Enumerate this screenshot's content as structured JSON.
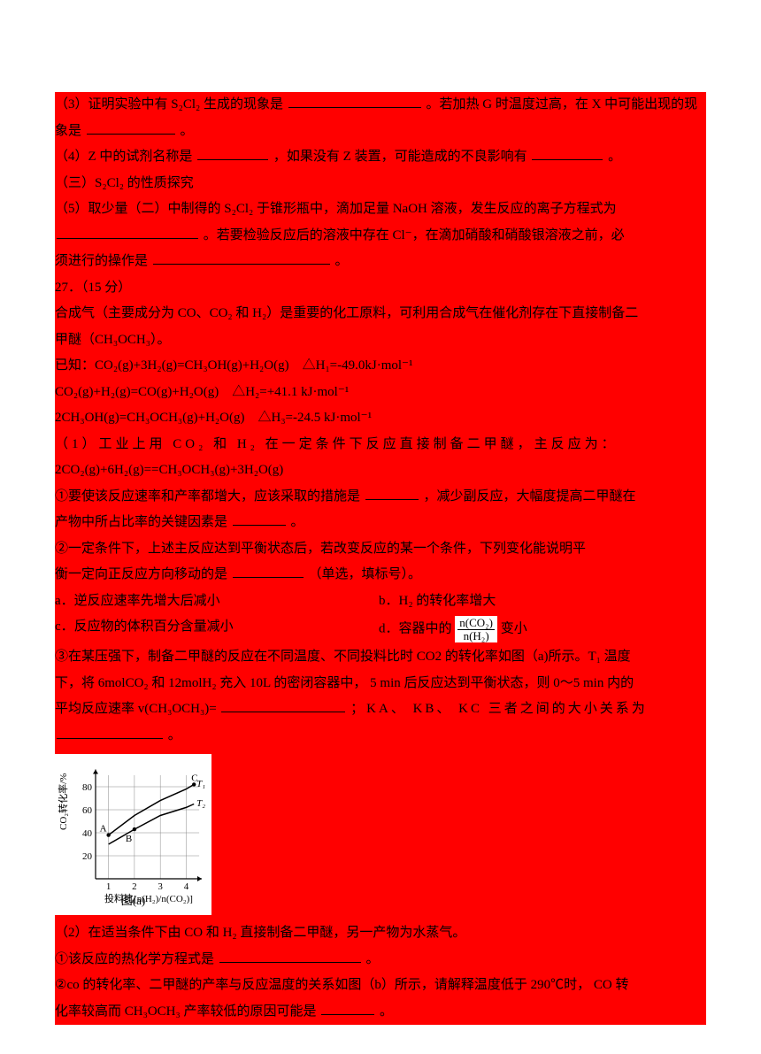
{
  "bg_color": "#ff0000",
  "text_color": "#000000",
  "page_bg": "#ffffff",
  "q3": {
    "text_a": "（3）证明实验中有 S₂Cl₂ 生成的现象是",
    "blank1_width": 150,
    "text_b": "。若加热 G 时温度过高，在 X 中可能出现的现",
    "text_c": "象是",
    "blank2_width": 100,
    "text_d": "。"
  },
  "q4": {
    "text_a": "（4）Z 中的试剂名称是",
    "blank1_width": 80,
    "text_b": "，如果没有 Z 装置，可能造成的不良影响有",
    "blank2_width": 80,
    "text_c": "。"
  },
  "section3": "（三）S₂Cl₂ 的性质探究",
  "q5": {
    "text_a": "（5）取少量（二）中制得的 S₂Cl₂ 于锥形瓶中，滴加足量 NaOH 溶液，发生反应的离子方程式为",
    "blank1_width": 160,
    "text_b": "。若要检验反应后的溶液中存在 Cl⁻，在滴加硝酸和硝酸银溶液之前，必",
    "text_c": "须进行的操作是",
    "blank2_width": 200,
    "text_d": "。"
  },
  "q27": {
    "header": "27．（15 分）",
    "intro_a": "合成气（主要成分为 CO、CO₂ 和 H₂）是重要的化工原料，可利用合成气在催化剂存在下直接制备二",
    "intro_b": "甲醚（CH₃OCH₃）。",
    "known_label": "已知：",
    "eq1": "CO₂(g)+3H₂(g)=CH₃OH(g)+H₂O(g)　△H₁=-49.0kJ·mol⁻¹",
    "eq2": " CO₂(g)+H₂(g)=CO(g)+H₂O(g)　△H₂=+41.1 kJ·mol⁻¹",
    "eq3": "2CH₃OH(g)=CH₃OCH₃(g)+H₂O(g)　△H₃=-24.5 kJ·mol⁻¹",
    "p1_a": "（1）工业上用 CO₂ 和 H₂ 在一定条件下反应直接制备二甲醚，主反应为：",
    "p1_eq": "2CO₂(g)+6H₂(g)==CH₃OCH₃(g)+3H₂O(g)",
    "p1_q1_a": "①要使该反应速率和产率都增大，应该采取的措施是",
    "p1_q1_blank": 60,
    "p1_q1_b": "，减少副反应，大幅度提高二甲醚在",
    "p1_q1_c": "产物中所占比率的关键因素是",
    "p1_q1_blank2": 60,
    "p1_q1_d": "。",
    "p1_q2_a": "②一定条件下，上述主反应达到平衡状态后，若改变反应的某一个条件，下列变化能说明平",
    "p1_q2_b": "衡一定向正反应方向移动的是",
    "p1_q2_blank": 80,
    "p1_q2_c": "（单选，填标号）。",
    "opt_a": "a．逆反应速率先增大后减小",
    "opt_b": "b．H₂ 的转化率增大",
    "opt_c": "c．反应物的体积百分含量减小",
    "opt_d_pre": "d．容器中的",
    "opt_d_post": "变小",
    "frac_num": "n(CO₂)",
    "frac_den": "n(H₂)",
    "p1_q3_a": "③在某压强下，制备二甲醚的反应在不同温度、不同投料比时 CO2 的转化率如图（a)所示。T₁ 温度",
    "p1_q3_b": "下，将 6molCO₂ 和 12molH₂ 充入 10L 的密闭容器中，  5 min 后反应达到平衡状态，则 0～5 min 内的",
    "p1_q3_c": "平均反应速率 v(CH₃OCH₃)=",
    "p1_q3_blank": 140,
    "p1_q3_d": "；KA、 KB、 KC 三者之间的大小关系为",
    "p1_q3_blank2": 120,
    "p1_q3_e": "。",
    "p2_a": "（2）在适当条件下由 CO 和 H₂ 直接制备二甲醚，另一产物为水蒸气。",
    "p2_q1_a": "①该反应的热化学方程式是",
    "p2_q1_blank": 160,
    "p2_q1_b": "。",
    "p2_q2_a": "②co 的转化率、二甲醚的产率与反应温度的关系如图（b）所示，请解释温度低于 290℃时， CO 转",
    "p2_q2_b": "化率较高而 CH₃OCH₃ 产率较低的原因可能是",
    "p2_q2_blank": 60,
    "p2_q2_c": "。"
  },
  "chart": {
    "y_label": "CO₂转化率/%",
    "x_label": "投料比[n(H₂)/n(CO₂)]",
    "caption": "图(a)",
    "grid_color": "#888888",
    "axis_color": "#000000",
    "bg": "#ffffff",
    "x_ticks": [
      "1",
      "2",
      "3",
      "4"
    ],
    "y_ticks": [
      "20",
      "40",
      "60",
      "80"
    ],
    "series": [
      {
        "label": "T₁",
        "points": [
          [
            1,
            38
          ],
          [
            2,
            55
          ],
          [
            3,
            68
          ],
          [
            4,
            78
          ],
          [
            4.3,
            82
          ]
        ],
        "label_pos": [
          4.4,
          80
        ]
      },
      {
        "label": "T₂",
        "points": [
          [
            1,
            30
          ],
          [
            2,
            43
          ],
          [
            3,
            55
          ],
          [
            4,
            62
          ],
          [
            4.3,
            65
          ]
        ],
        "label_pos": [
          4.4,
          63
        ]
      }
    ],
    "markers": [
      {
        "label": "A",
        "x": 1,
        "y": 38
      },
      {
        "label": "B",
        "x": 2,
        "y": 43
      },
      {
        "label": "C",
        "x": 4.3,
        "y": 82
      }
    ],
    "line_color": "#000000"
  }
}
